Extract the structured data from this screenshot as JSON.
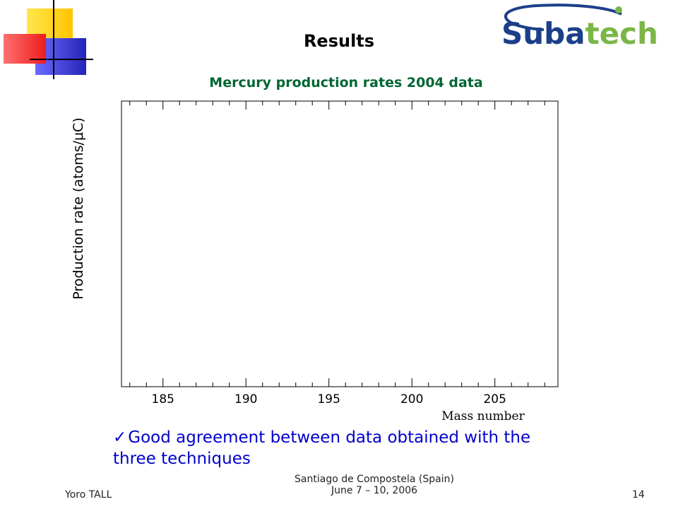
{
  "slide": {
    "title": "Results",
    "logo_text": "Subatech",
    "bullet": "Good agreement between data obtained with the three techniques",
    "footer": {
      "author": "Yoro TALL",
      "venue_line1": "Santiago de Compostela (Spain)",
      "venue_line2": "June 7 – 10, 2006",
      "page": "14"
    }
  },
  "colors": {
    "title_green": "#006633",
    "bullet_blue": "#0000cc",
    "deco_yellow": "#ffd21a",
    "deco_red": "#ff3b3b",
    "deco_blue": "#3333cc",
    "logo_blue": "#1c3f8a",
    "logo_green": "#7ab648"
  },
  "chart_data": {
    "type": "scatter",
    "title": "Mercury production rates 2004 data",
    "xlabel": "Mass number",
    "ylabel": "Production rate (atoms/μC)",
    "xlim": [
      182.5,
      208.8
    ],
    "ylim": [
      2.95e-08,
      0.0
    ]
  }
}
